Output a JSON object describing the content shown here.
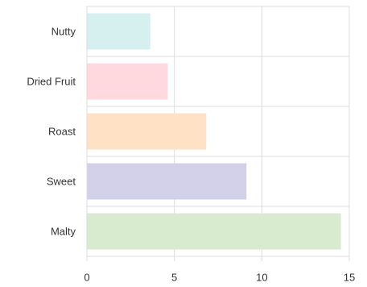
{
  "chart_data": {
    "type": "bar",
    "orientation": "horizontal",
    "categories": [
      "Nutty",
      "Dried Fruit",
      "Roast",
      "Sweet",
      "Malty"
    ],
    "values": [
      3.6,
      4.6,
      6.8,
      9.1,
      14.5
    ],
    "colors": [
      "#d6f0ef",
      "#ffd9de",
      "#ffe2c6",
      "#d3d0ea",
      "#d9ebcf"
    ],
    "title": "",
    "xlabel": "",
    "ylabel": "",
    "xlim": [
      0,
      15
    ],
    "xticks": [
      0,
      5,
      10,
      15
    ],
    "grid": true,
    "legend": "none"
  }
}
